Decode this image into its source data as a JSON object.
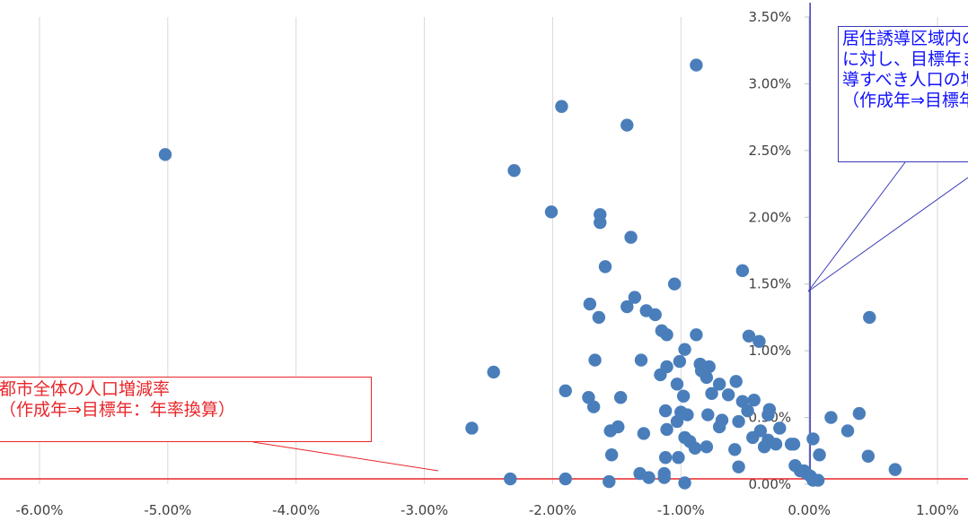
{
  "chart_data": {
    "type": "scatter",
    "title": "",
    "xlabel": "",
    "ylabel": "",
    "xlim": [
      -0.06,
      0.01
    ],
    "ylim": [
      0,
      0.035
    ],
    "x_ticks": [
      "-6.00%",
      "-5.00%",
      "-4.00%",
      "-3.00%",
      "-2.00%",
      "-1.00%",
      "0.00%",
      "1.00%"
    ],
    "y_ticks": [
      "0.00%",
      "0.50%",
      "1.00%",
      "1.50%",
      "2.00%",
      "2.50%",
      "3.00%",
      "3.50%"
    ],
    "grid": "vertical",
    "marker_color": "#4a7ebb",
    "reference_lines": [
      {
        "axis": "y",
        "value": 0.0004,
        "color": "#e8262a"
      },
      {
        "axis": "x",
        "value": 0.0,
        "color": "#3a3ab8"
      }
    ],
    "points": [
      [
        -0.0502,
        0.0247
      ],
      [
        -0.0088,
        0.0314
      ],
      [
        -0.0193,
        0.0283
      ],
      [
        -0.0142,
        0.0269
      ],
      [
        -0.023,
        0.0235
      ],
      [
        -0.0201,
        0.0204
      ],
      [
        -0.0163,
        0.0202
      ],
      [
        -0.0163,
        0.0196
      ],
      [
        -0.0139,
        0.0185
      ],
      [
        -0.0159,
        0.0163
      ],
      [
        -0.0052,
        0.016
      ],
      [
        -0.0105,
        0.015
      ],
      [
        -0.0136,
        0.014
      ],
      [
        -0.0142,
        0.0133
      ],
      [
        -0.0171,
        0.0135
      ],
      [
        -0.0127,
        0.013
      ],
      [
        -0.012,
        0.0127
      ],
      [
        -0.0164,
        0.0125
      ],
      [
        -0.0115,
        0.0115
      ],
      [
        -0.0111,
        0.0112
      ],
      [
        -0.0088,
        0.0112
      ],
      [
        -0.0047,
        0.0111
      ],
      [
        0.0047,
        0.0125
      ],
      [
        -0.0039,
        0.0107
      ],
      [
        -0.0097,
        0.0101
      ],
      [
        -0.0167,
        0.0093
      ],
      [
        -0.0131,
        0.0093
      ],
      [
        -0.0101,
        0.0092
      ],
      [
        -0.0085,
        0.009
      ],
      [
        -0.0111,
        0.0088
      ],
      [
        -0.0078,
        0.0088
      ],
      [
        -0.0084,
        0.0085
      ],
      [
        -0.0116,
        0.0082
      ],
      [
        -0.008,
        0.008
      ],
      [
        -0.0057,
        0.0077
      ],
      [
        -0.0103,
        0.0075
      ],
      [
        -0.007,
        0.0075
      ],
      [
        -0.0246,
        0.0084
      ],
      [
        -0.0076,
        0.0068
      ],
      [
        -0.0098,
        0.0066
      ],
      [
        -0.0063,
        0.0067
      ],
      [
        -0.0172,
        0.0065
      ],
      [
        -0.0147,
        0.0065
      ],
      [
        -0.0052,
        0.0062
      ],
      [
        -0.0043,
        0.0063
      ],
      [
        -0.019,
        0.007
      ],
      [
        -0.0168,
        0.0058
      ],
      [
        -0.0031,
        0.0056
      ],
      [
        -0.01,
        0.0054
      ],
      [
        -0.0112,
        0.0055
      ],
      [
        -0.0079,
        0.0052
      ],
      [
        -0.0095,
        0.0052
      ],
      [
        -0.0048,
        0.0055
      ],
      [
        -0.0032,
        0.0052
      ],
      [
        0.0017,
        0.005
      ],
      [
        0.0039,
        0.0053
      ],
      [
        -0.0103,
        0.0047
      ],
      [
        -0.0068,
        0.0048
      ],
      [
        -0.0055,
        0.0047
      ],
      [
        -0.0263,
        0.0042
      ],
      [
        -0.0155,
        0.004
      ],
      [
        -0.0149,
        0.0043
      ],
      [
        -0.0111,
        0.0041
      ],
      [
        -0.007,
        0.0043
      ],
      [
        -0.0038,
        0.004
      ],
      [
        -0.0023,
        0.0042
      ],
      [
        -0.0129,
        0.0038
      ],
      [
        -0.0097,
        0.0035
      ],
      [
        -0.0044,
        0.0035
      ],
      [
        -0.0032,
        0.0033
      ],
      [
        -0.0026,
        0.003
      ],
      [
        -0.0012,
        0.003
      ],
      [
        -0.0035,
        0.0028
      ],
      [
        0.003,
        0.004
      ],
      [
        0.0003,
        0.0034
      ],
      [
        -0.0093,
        0.0032
      ],
      [
        -0.008,
        0.0028
      ],
      [
        -0.0089,
        0.0027
      ],
      [
        -0.0058,
        0.0026
      ],
      [
        -0.0102,
        0.002
      ],
      [
        -0.0112,
        0.002
      ],
      [
        -0.0154,
        0.0022
      ],
      [
        0.0008,
        0.0022
      ],
      [
        0.0046,
        0.0021
      ],
      [
        -0.0055,
        0.0013
      ],
      [
        -0.0011,
        0.0014
      ],
      [
        -0.0132,
        0.0008
      ],
      [
        -0.0113,
        0.0008
      ],
      [
        -0.0007,
        0.001
      ],
      [
        -0.0125,
        0.0005
      ],
      [
        0.0067,
        0.0011
      ],
      [
        -0.019,
        0.0004
      ],
      [
        -0.0233,
        0.0004
      ],
      [
        -0.0113,
        0.0005
      ],
      [
        0.0001,
        0.0006
      ],
      [
        -0.0004,
        0.001
      ],
      [
        -0.0002,
        0.0008
      ],
      [
        -0.0014,
        0.003
      ],
      [
        0.0003,
        0.0003
      ],
      [
        0.0007,
        0.0003
      ],
      [
        -0.0156,
        0.0002
      ],
      [
        -0.0097,
        0.0001
      ]
    ]
  },
  "annotations": {
    "red_callout": {
      "lines": [
        "都市全体の人口増減率",
        "（作成年⇒目標年：年率換算）"
      ]
    },
    "blue_callout": {
      "lines": [
        "居住誘導区域内の人口",
        "に対し、目標年までに誘",
        "導すべき人口の増減率",
        "（作成年⇒目標年）"
      ]
    }
  }
}
